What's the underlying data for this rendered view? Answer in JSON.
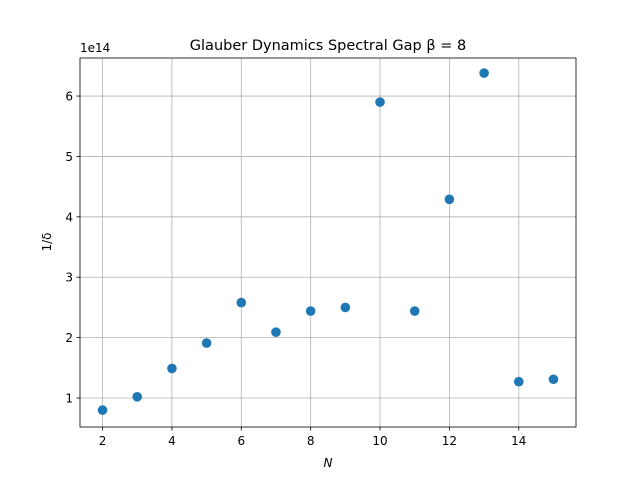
{
  "chart_data": {
    "type": "scatter",
    "title": "Glauber Dynamics Spectral Gap  β =  8",
    "xlabel": "N",
    "ylabel": "1/δ",
    "y_offset_label": "1e14",
    "xlim": [
      1.35,
      15.65
    ],
    "ylim": [
      0.52,
      6.63
    ],
    "y_scale": 100000000000000.0,
    "grid": true,
    "marker_color": "#1f77b4",
    "x_ticks": [
      2,
      4,
      6,
      8,
      10,
      12,
      14
    ],
    "y_ticks": [
      1,
      2,
      3,
      4,
      5,
      6
    ],
    "x": [
      2,
      3,
      4,
      5,
      6,
      7,
      8,
      9,
      10,
      11,
      12,
      13,
      14,
      15
    ],
    "y": [
      0.8,
      1.02,
      1.49,
      1.91,
      2.58,
      2.09,
      2.44,
      2.5,
      5.9,
      2.44,
      4.29,
      6.38,
      1.27,
      1.31
    ]
  }
}
